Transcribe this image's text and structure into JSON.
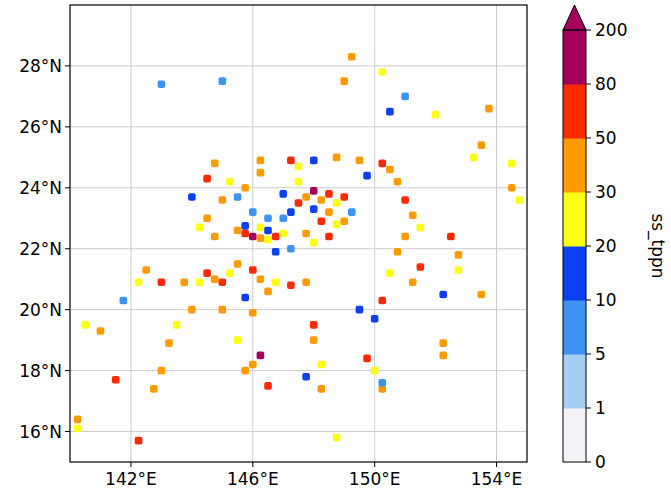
{
  "chart_data": {
    "type": "heatmap",
    "xlim": [
      140,
      155
    ],
    "ylim": [
      15,
      30
    ],
    "xticks": [
      {
        "value": 142,
        "label": "142°E"
      },
      {
        "value": 146,
        "label": "146°E"
      },
      {
        "value": 150,
        "label": "150°E"
      },
      {
        "value": 154,
        "label": "154°E"
      }
    ],
    "yticks": [
      {
        "value": 16,
        "label": "16°N"
      },
      {
        "value": 18,
        "label": "18°N"
      },
      {
        "value": 20,
        "label": "20°N"
      },
      {
        "value": 22,
        "label": "22°N"
      },
      {
        "value": 24,
        "label": "24°N"
      },
      {
        "value": 26,
        "label": "26°N"
      },
      {
        "value": 28,
        "label": "28°N"
      }
    ],
    "grid": true,
    "colorbar": {
      "label": "ss_tppn",
      "ticks": [
        0,
        1,
        5,
        10,
        20,
        30,
        50,
        80,
        200
      ],
      "colors": [
        "#f3f3f8",
        "#a6cdf2",
        "#3f93f2",
        "#0a40f0",
        "#ffff14",
        "#ff9a00",
        "#ff2a00",
        "#a3005c"
      ]
    },
    "cells": [
      [
        146.5,
        23.0,
        8
      ],
      [
        147.0,
        23.0,
        6
      ],
      [
        148.0,
        23.3,
        12
      ],
      [
        149.25,
        23.2,
        8
      ],
      [
        147.25,
        22.0,
        7
      ],
      [
        146.75,
        21.9,
        10
      ],
      [
        146.0,
        23.2,
        6
      ],
      [
        145.5,
        22.6,
        35
      ],
      [
        145.75,
        22.5,
        60
      ],
      [
        146.0,
        22.4,
        90
      ],
      [
        146.25,
        22.35,
        45
      ],
      [
        146.5,
        22.3,
        25
      ],
      [
        146.75,
        22.4,
        60
      ],
      [
        147.0,
        22.5,
        25
      ],
      [
        145.75,
        22.75,
        15
      ],
      [
        146.25,
        22.7,
        25
      ],
      [
        146.5,
        22.6,
        12
      ],
      [
        147.5,
        23.5,
        60
      ],
      [
        147.75,
        23.7,
        35
      ],
      [
        148.0,
        23.9,
        90
      ],
      [
        148.25,
        23.6,
        40
      ],
      [
        148.5,
        23.8,
        60
      ],
      [
        148.75,
        23.5,
        25
      ],
      [
        149.0,
        23.7,
        55
      ],
      [
        148.5,
        23.2,
        35
      ],
      [
        148.25,
        22.9,
        60
      ],
      [
        148.75,
        22.8,
        25
      ],
      [
        149.0,
        22.9,
        40
      ],
      [
        147.75,
        22.5,
        45
      ],
      [
        148.0,
        22.2,
        20
      ],
      [
        148.5,
        22.4,
        55
      ],
      [
        147.25,
        23.2,
        15
      ],
      [
        147.0,
        23.8,
        12
      ],
      [
        147.5,
        24.2,
        20
      ],
      [
        144.5,
        21.2,
        60
      ],
      [
        144.75,
        21.0,
        35
      ],
      [
        145.0,
        20.9,
        55
      ],
      [
        145.25,
        21.2,
        25
      ],
      [
        145.5,
        21.5,
        40
      ],
      [
        146.0,
        21.3,
        60
      ],
      [
        146.25,
        21.0,
        30
      ],
      [
        146.5,
        20.6,
        45
      ],
      [
        145.75,
        20.4,
        15
      ],
      [
        144.25,
        20.9,
        20
      ],
      [
        143.75,
        20.9,
        45
      ],
      [
        143.0,
        20.9,
        60
      ],
      [
        142.25,
        20.9,
        25
      ],
      [
        142.5,
        21.3,
        35
      ],
      [
        141.75,
        20.3,
        8
      ],
      [
        144.0,
        20.0,
        40
      ],
      [
        145.0,
        20.0,
        35
      ],
      [
        146.0,
        19.9,
        45
      ],
      [
        146.75,
        20.9,
        25
      ],
      [
        147.25,
        20.8,
        55
      ],
      [
        147.75,
        20.9,
        30
      ],
      [
        144.5,
        23.0,
        35
      ],
      [
        144.25,
        22.7,
        25
      ],
      [
        144.75,
        22.4,
        45
      ],
      [
        145.0,
        23.6,
        30
      ],
      [
        144.5,
        24.3,
        50
      ],
      [
        144.75,
        24.8,
        40
      ],
      [
        145.25,
        24.2,
        20
      ],
      [
        145.75,
        24.0,
        30
      ],
      [
        145.5,
        23.7,
        8
      ],
      [
        144.0,
        23.7,
        10
      ],
      [
        146.25,
        24.5,
        45
      ],
      [
        146.25,
        24.9,
        30
      ],
      [
        147.25,
        24.9,
        55
      ],
      [
        147.5,
        24.7,
        25
      ],
      [
        148.75,
        25.0,
        40
      ],
      [
        149.5,
        24.9,
        30
      ],
      [
        150.25,
        24.8,
        60
      ],
      [
        150.5,
        24.6,
        45
      ],
      [
        150.75,
        24.2,
        35
      ],
      [
        149.75,
        24.4,
        12
      ],
      [
        148.0,
        24.9,
        10
      ],
      [
        151.0,
        23.6,
        55
      ],
      [
        151.25,
        23.1,
        45
      ],
      [
        151.5,
        22.7,
        25
      ],
      [
        151.0,
        22.4,
        40
      ],
      [
        150.75,
        21.9,
        35
      ],
      [
        151.5,
        21.4,
        55
      ],
      [
        150.5,
        21.2,
        20
      ],
      [
        151.25,
        20.9,
        30
      ],
      [
        150.25,
        20.3,
        50
      ],
      [
        150.0,
        19.7,
        12
      ],
      [
        153.5,
        25.4,
        35
      ],
      [
        153.25,
        25.0,
        20
      ],
      [
        154.5,
        24.0,
        40
      ],
      [
        154.75,
        23.6,
        25
      ],
      [
        152.5,
        22.4,
        55
      ],
      [
        152.75,
        21.8,
        45
      ],
      [
        152.75,
        21.3,
        25
      ],
      [
        152.25,
        20.5,
        15
      ],
      [
        153.5,
        20.5,
        35
      ],
      [
        152.25,
        18.9,
        45
      ],
      [
        152.25,
        18.5,
        30
      ],
      [
        154.5,
        24.8,
        20
      ],
      [
        152.0,
        26.4,
        25
      ],
      [
        153.75,
        26.6,
        30
      ],
      [
        149.25,
        28.3,
        40
      ],
      [
        150.25,
        27.8,
        20
      ],
      [
        149.0,
        27.5,
        35
      ],
      [
        150.5,
        26.5,
        15
      ],
      [
        151.0,
        27.0,
        8
      ],
      [
        143.0,
        27.4,
        8
      ],
      [
        145.0,
        27.5,
        5
      ],
      [
        146.25,
        18.5,
        80
      ],
      [
        146.0,
        18.2,
        45
      ],
      [
        145.75,
        18.0,
        30
      ],
      [
        146.5,
        17.5,
        60
      ],
      [
        148.0,
        19.5,
        55
      ],
      [
        148.0,
        19.0,
        35
      ],
      [
        148.25,
        18.2,
        25
      ],
      [
        148.25,
        17.4,
        45
      ],
      [
        149.75,
        18.4,
        50
      ],
      [
        150.0,
        18.0,
        20
      ],
      [
        150.25,
        17.4,
        35
      ],
      [
        148.75,
        15.8,
        25
      ],
      [
        145.5,
        19.0,
        20
      ],
      [
        143.25,
        18.9,
        40
      ],
      [
        143.5,
        19.5,
        25
      ],
      [
        143.0,
        18.0,
        35
      ],
      [
        142.75,
        17.4,
        45
      ],
      [
        141.5,
        17.7,
        55
      ],
      [
        141.0,
        19.3,
        35
      ],
      [
        140.5,
        19.5,
        25
      ],
      [
        140.25,
        16.4,
        45
      ],
      [
        142.25,
        15.7,
        55
      ],
      [
        140.25,
        16.1,
        20
      ],
      [
        149.5,
        20.0,
        10
      ],
      [
        147.75,
        17.8,
        15
      ],
      [
        150.25,
        17.6,
        8
      ]
    ]
  }
}
